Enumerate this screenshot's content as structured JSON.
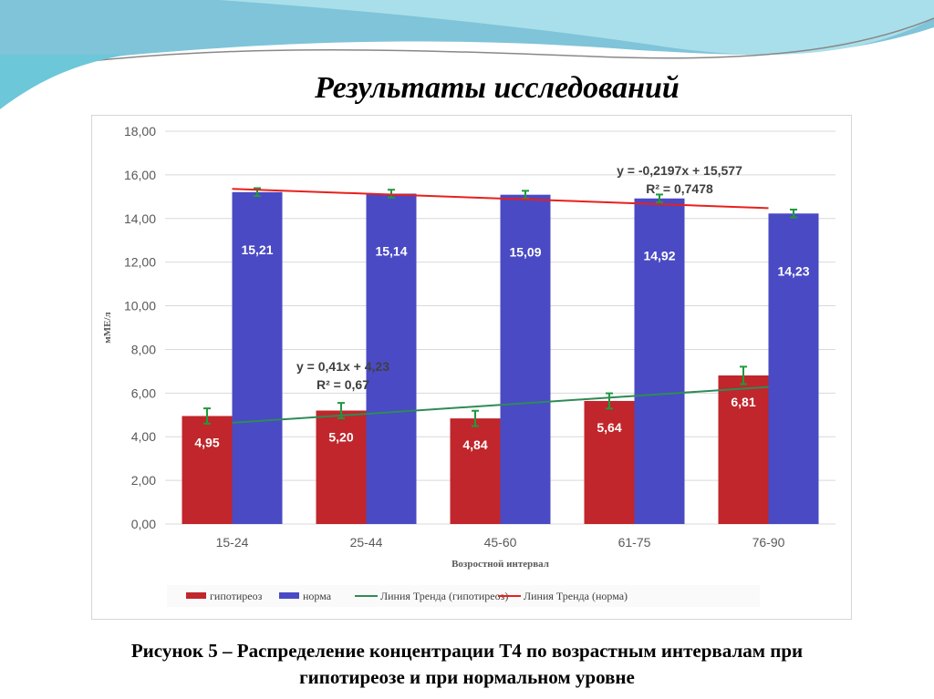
{
  "slide": {
    "title": "Результаты исследований",
    "caption_line1": "Рисунок 5 – Распределение концентрации Т4 по возрастным интервалам при",
    "caption_line2": "гипотиреозе и при нормальном уровне"
  },
  "chart_data": {
    "type": "bar",
    "categories": [
      "15-24",
      "25-44",
      "45-60",
      "61-75",
      "76-90"
    ],
    "series": [
      {
        "name": "гипотиреоз",
        "color": "#c0262b",
        "values": [
          4.95,
          5.2,
          4.84,
          5.64,
          6.81
        ],
        "labels": [
          "4,95",
          "5,20",
          "4,84",
          "5,64",
          "6,81"
        ],
        "error": [
          0.35,
          0.35,
          0.35,
          0.35,
          0.4
        ]
      },
      {
        "name": "норма",
        "color": "#4a4ac4",
        "values": [
          15.21,
          15.14,
          15.09,
          14.92,
          14.23
        ],
        "labels": [
          "15,21",
          "15,14",
          "15,09",
          "14,92",
          "14,23"
        ],
        "error": [
          0.18,
          0.18,
          0.18,
          0.18,
          0.18
        ]
      }
    ],
    "trendlines": [
      {
        "name": "Линия Тренда (гипотиреоз)",
        "color": "#2e8b57",
        "slope": 0.41,
        "intercept": 4.23,
        "equation": "y = 0,41x + 4,23",
        "r2": "R² = 0,67"
      },
      {
        "name": "Линия Тренда (норма)",
        "color": "#e8201c",
        "slope": -0.2197,
        "intercept": 15.577,
        "equation": "y = -0,2197x + 15,577",
        "r2": "R² = 0,7478"
      }
    ],
    "xlabel": "Возростной интервал",
    "ylabel": "мМЕ/л",
    "ylim": [
      0,
      18
    ],
    "yticks": [
      "0,00",
      "2,00",
      "4,00",
      "6,00",
      "8,00",
      "10,00",
      "12,00",
      "14,00",
      "16,00",
      "18,00"
    ],
    "legend": "bottom",
    "error_bar_color": "#1f9a3c"
  }
}
